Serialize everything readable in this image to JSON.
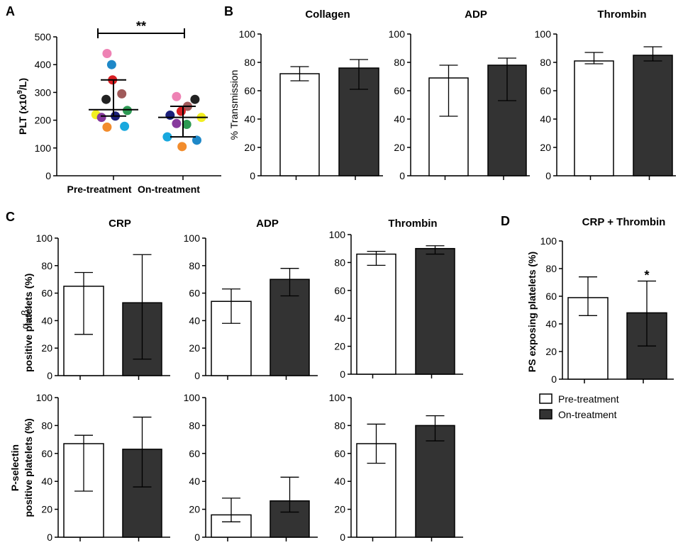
{
  "colors": {
    "pre_fill": "#ffffff",
    "on_fill": "#333333",
    "stroke": "#000000",
    "dot_colors": [
      "#ee82b4",
      "#1e88c8",
      "#d81e22",
      "#a05a5a",
      "#222222",
      "#2e9a54",
      "#f2ee21",
      "#873a9d",
      "#1b1f7a",
      "#f28c2c",
      "#18a8de",
      "#1e88c8"
    ]
  },
  "panel_letters": {
    "a": "A",
    "b": "B",
    "c": "C",
    "d": "D"
  },
  "legend": {
    "pre": "Pre-treatment",
    "on": "On-treatment"
  },
  "chart_data": [
    {
      "id": "A",
      "type": "scatter",
      "ylabel_main": "PLT (x10",
      "ylabel_sup": "9",
      "ylabel_tail": "/L)",
      "ylim": [
        0,
        500
      ],
      "yticks": [
        "0",
        "100",
        "200",
        "300",
        "400",
        "500"
      ],
      "categories": [
        "Pre-treatment",
        "On-treatment"
      ],
      "significance": "**",
      "series": [
        {
          "name": "Pre-treatment",
          "mean": 238,
          "sd_low": 215,
          "sd_high": 345,
          "points": [
            {
              "y": 440,
              "dx": -0.35,
              "c": 0
            },
            {
              "y": 400,
              "dx": -0.1,
              "c": 1
            },
            {
              "y": 345,
              "dx": -0.05,
              "c": 2
            },
            {
              "y": 295,
              "dx": 0.45,
              "c": 3
            },
            {
              "y": 275,
              "dx": -0.4,
              "c": 4
            },
            {
              "y": 235,
              "dx": 0.75,
              "c": 5
            },
            {
              "y": 220,
              "dx": -0.95,
              "c": 6
            },
            {
              "y": 210,
              "dx": -0.65,
              "c": 7
            },
            {
              "y": 215,
              "dx": 0.1,
              "c": 8
            },
            {
              "y": 175,
              "dx": -0.35,
              "c": 9
            },
            {
              "y": 178,
              "dx": 0.6,
              "c": 10
            }
          ]
        },
        {
          "name": "On-treatment",
          "mean": 210,
          "sd_low": 140,
          "sd_high": 250,
          "points": [
            {
              "y": 285,
              "dx": -0.35,
              "c": 0
            },
            {
              "y": 275,
              "dx": 0.65,
              "c": 4
            },
            {
              "y": 250,
              "dx": 0.25,
              "c": 3
            },
            {
              "y": 232,
              "dx": -0.1,
              "c": 2
            },
            {
              "y": 218,
              "dx": -0.7,
              "c": 8
            },
            {
              "y": 210,
              "dx": 1.0,
              "c": 6
            },
            {
              "y": 188,
              "dx": -0.35,
              "c": 7
            },
            {
              "y": 185,
              "dx": 0.2,
              "c": 5
            },
            {
              "y": 140,
              "dx": -0.85,
              "c": 10
            },
            {
              "y": 128,
              "dx": 0.75,
              "c": 1
            },
            {
              "y": 105,
              "dx": -0.05,
              "c": 9
            }
          ]
        }
      ]
    },
    {
      "id": "B1",
      "type": "bar",
      "title": "Collagen",
      "ylabel": "% Transmission",
      "ylim": [
        0,
        100
      ],
      "yticks": [
        "0",
        "20",
        "40",
        "60",
        "80",
        "100"
      ],
      "series": [
        {
          "name": "Pre-treatment",
          "value": 72,
          "err_low": 67,
          "err_high": 77
        },
        {
          "name": "On-treatment",
          "value": 76,
          "err_low": 61,
          "err_high": 82
        }
      ]
    },
    {
      "id": "B2",
      "type": "bar",
      "title": "ADP",
      "ylim": [
        0,
        100
      ],
      "yticks": [
        "0",
        "20",
        "40",
        "60",
        "80",
        "100"
      ],
      "series": [
        {
          "name": "Pre-treatment",
          "value": 69,
          "err_low": 42,
          "err_high": 78
        },
        {
          "name": "On-treatment",
          "value": 78,
          "err_low": 53,
          "err_high": 83
        }
      ]
    },
    {
      "id": "B3",
      "type": "bar",
      "title": "Thrombin",
      "ylim": [
        0,
        100
      ],
      "yticks": [
        "0",
        "20",
        "40",
        "60",
        "80",
        "100"
      ],
      "series": [
        {
          "name": "Pre-treatment",
          "value": 81,
          "err_low": 79,
          "err_high": 87
        },
        {
          "name": "On-treatment",
          "value": 85,
          "err_low": 81,
          "err_high": 91
        }
      ]
    },
    {
      "id": "C1",
      "type": "bar",
      "title": "CRP",
      "ylabel_top": "positive platelets (%)",
      "ylim": [
        0,
        100
      ],
      "yticks": [
        "0",
        "20",
        "40",
        "60",
        "80",
        "100"
      ],
      "series": [
        {
          "name": "Pre-treatment",
          "value": 65,
          "err_low": 30,
          "err_high": 75
        },
        {
          "name": "On-treatment",
          "value": 53,
          "err_low": 12,
          "err_high": 88
        }
      ]
    },
    {
      "id": "C2",
      "type": "bar",
      "title": "ADP",
      "ylim": [
        0,
        100
      ],
      "yticks": [
        "0",
        "20",
        "40",
        "60",
        "80",
        "100"
      ],
      "series": [
        {
          "name": "Pre-treatment",
          "value": 54,
          "err_low": 38,
          "err_high": 63
        },
        {
          "name": "On-treatment",
          "value": 70,
          "err_low": 58,
          "err_high": 78
        }
      ]
    },
    {
      "id": "C3",
      "type": "bar",
      "title": "Thrombin",
      "ylim": [
        0,
        100
      ],
      "yticks": [
        "0",
        "20",
        "40",
        "60",
        "80",
        "100"
      ],
      "series": [
        {
          "name": "Pre-treatment",
          "value": 86,
          "err_low": 78,
          "err_high": 88
        },
        {
          "name": "On-treatment",
          "value": 90,
          "err_low": 86,
          "err_high": 92
        }
      ]
    },
    {
      "id": "C4",
      "type": "bar",
      "ylabel": "P-selectin",
      "ylabel2": "positive platelets (%)",
      "ylim": [
        0,
        100
      ],
      "yticks": [
        "0",
        "20",
        "40",
        "60",
        "80",
        "100"
      ],
      "series": [
        {
          "name": "Pre-treatment",
          "value": 67,
          "err_low": 33,
          "err_high": 73
        },
        {
          "name": "On-treatment",
          "value": 63,
          "err_low": 36,
          "err_high": 86
        }
      ]
    },
    {
      "id": "C5",
      "type": "bar",
      "ylim": [
        0,
        100
      ],
      "yticks": [
        "0",
        "20",
        "40",
        "60",
        "80",
        "100"
      ],
      "series": [
        {
          "name": "Pre-treatment",
          "value": 16,
          "err_low": 11,
          "err_high": 28
        },
        {
          "name": "On-treatment",
          "value": 26,
          "err_low": 18,
          "err_high": 43
        }
      ]
    },
    {
      "id": "C6",
      "type": "bar",
      "ylim": [
        0,
        100
      ],
      "yticks": [
        "0",
        "20",
        "40",
        "60",
        "80",
        "100"
      ],
      "series": [
        {
          "name": "Pre-treatment",
          "value": 67,
          "err_low": 53,
          "err_high": 81
        },
        {
          "name": "On-treatment",
          "value": 80,
          "err_low": 69,
          "err_high": 87
        }
      ]
    },
    {
      "id": "D",
      "type": "bar",
      "title": "CRP + Thrombin",
      "ylabel": "PS exposing platelets (%)",
      "ylim": [
        0,
        100
      ],
      "yticks": [
        "0",
        "20",
        "40",
        "60",
        "80",
        "100"
      ],
      "significance": "*",
      "series": [
        {
          "name": "Pre-treatment",
          "value": 59,
          "err_low": 46,
          "err_high": 74
        },
        {
          "name": "On-treatment",
          "value": 48,
          "err_low": 24,
          "err_high": 71
        }
      ]
    }
  ]
}
